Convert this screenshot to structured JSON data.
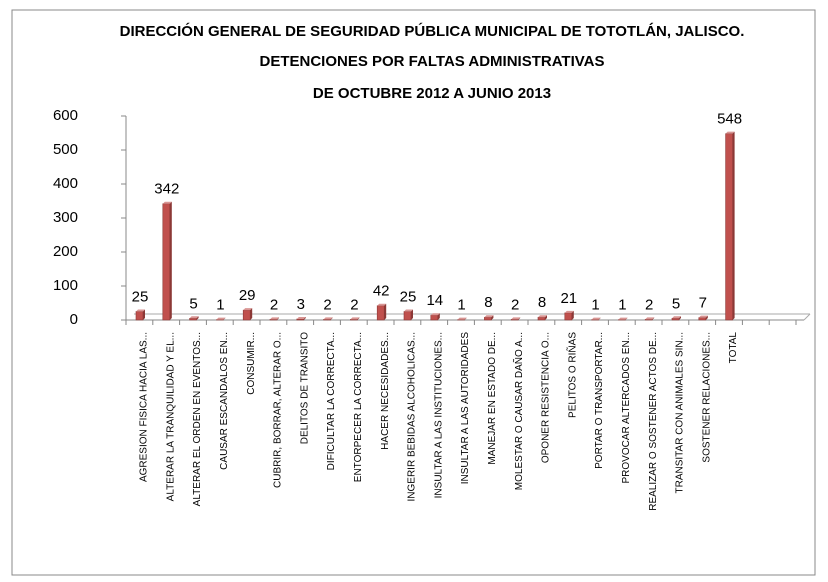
{
  "chart_data": {
    "type": "bar",
    "title_lines": [
      "DIRECCIÓN GENERAL DE SEGURIDAD PÚBLICA MUNICIPAL DE TOTOTLÁN, JALISCO.",
      "DETENCIONES POR FALTAS ADMINISTRATIVAS",
      "DE OCTUBRE 2012 A JUNIO 2013"
    ],
    "categories": [
      "AGRESION FISICA HACIA LAS...",
      "ALTERAR LA TRANQUILIDAD Y EL...",
      "ALTERAR EL ORDEN EN EVENTOS...",
      "CAUSAR ESCANDALOS EN...",
      "CONSUMIR...",
      "CUBRIR, BORRAR, ALTERAR O...",
      "DELITOS DE TRANSITO",
      "DIFICULTAR LA CORRECTA...",
      "ENTORPECER LA CORRECTA...",
      "HACER NECESIDADES...",
      "INGERIR BEBIDAS ALCOHOLICAS...",
      "INSULTAR A LAS INSTITUCIONES...",
      "INSULTAR A LAS AUTORIDADES",
      "MANEJAR EN ESTADO DE...",
      "MOLESTAR O CAUSAR DAÑO A...",
      "OPONER RESISTENCIA O...",
      "PELITOS O RIÑAS",
      "PORTAR O TRANSPORTAR...",
      "PROVOCAR ALTERCADOS EN...",
      "REALIZAR O SOSTENER ACTOS DE...",
      "TRANSITAR CON ANIMALES SIN...",
      "SOSTENER RELACIONES...",
      "TOTAL"
    ],
    "values": [
      25,
      342,
      5,
      1,
      29,
      2,
      3,
      2,
      2,
      42,
      25,
      14,
      1,
      8,
      2,
      8,
      21,
      1,
      1,
      2,
      5,
      7,
      548
    ],
    "color": "#c0504d",
    "ylim": [
      0,
      600
    ],
    "yticks": [
      0,
      100,
      200,
      300,
      400,
      500,
      600
    ]
  }
}
